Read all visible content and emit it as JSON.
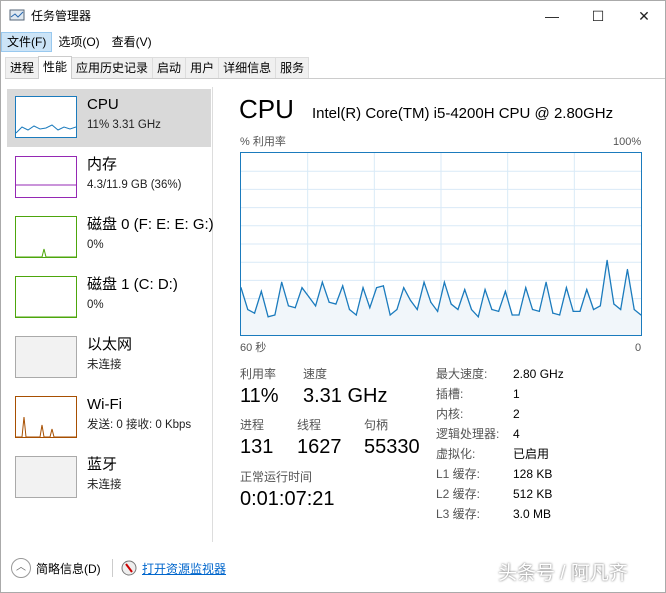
{
  "window": {
    "title": "任务管理器",
    "min": "—",
    "max": "☐",
    "close": "✕"
  },
  "menu": [
    "文件(F)",
    "选项(O)",
    "查看(V)"
  ],
  "tabs": [
    "进程",
    "性能",
    "应用历史记录",
    "启动",
    "用户",
    "详细信息",
    "服务"
  ],
  "sidebar": [
    {
      "name": "CPU",
      "sub": "11%  3.31 GHz",
      "color": "#1b7bbd"
    },
    {
      "name": "内存",
      "sub": "4.3/11.9 GB (36%)",
      "color": "#9528b4"
    },
    {
      "name": "磁盘 0 (F: E: E: G:)",
      "sub": "0%",
      "color": "#4da60c"
    },
    {
      "name": "磁盘 1 (C: D:)",
      "sub": "0%",
      "color": "#4da60c"
    },
    {
      "name": "以太网",
      "sub": "未连接",
      "color": "#aaaaaa"
    },
    {
      "name": "Wi-Fi",
      "sub": "发送: 0  接收: 0 Kbps",
      "color": "#a74f01"
    },
    {
      "name": "蓝牙",
      "sub": "未连接",
      "color": "#aaaaaa"
    }
  ],
  "main": {
    "title": "CPU",
    "model": "Intel(R) Core(TM) i5-4200H CPU @ 2.80GHz",
    "util_label": "% 利用率",
    "max_label": "100%",
    "left_time": "60 秒",
    "right_time": "0"
  },
  "chart_data": {
    "type": "area",
    "ylim": [
      0,
      100
    ],
    "xlabel": "",
    "values": [
      26,
      14,
      12,
      24,
      10,
      11,
      29,
      16,
      15,
      26,
      21,
      16,
      29,
      18,
      17,
      27,
      14,
      11,
      26,
      15,
      26,
      27,
      11,
      14,
      26,
      19,
      14,
      29,
      18,
      13,
      29,
      17,
      14,
      25,
      14,
      10,
      25,
      14,
      13,
      24,
      11,
      11,
      26,
      14,
      13,
      29,
      12,
      11,
      26,
      13,
      13,
      25,
      14,
      16,
      41,
      17,
      14,
      36,
      14,
      11
    ],
    "color": "#1b7bbd"
  },
  "stats": {
    "util_label": "利用率",
    "util": "11%",
    "speed_label": "速度",
    "speed": "3.31 GHz",
    "proc_label": "进程",
    "proc": "131",
    "thread_label": "线程",
    "thread": "1627",
    "handle_label": "句柄",
    "handle": "55330",
    "uptime_label": "正常运行时间",
    "uptime": "0:01:07:21"
  },
  "specs": [
    [
      "最大速度:",
      "2.80 GHz"
    ],
    [
      "插槽:",
      "1"
    ],
    [
      "内核:",
      "2"
    ],
    [
      "逻辑处理器:",
      "4"
    ],
    [
      "虚拟化:",
      "已启用"
    ],
    [
      "L1 缓存:",
      "128 KB"
    ],
    [
      "L2 缓存:",
      "512 KB"
    ],
    [
      "L3 缓存:",
      "3.0 MB"
    ]
  ],
  "footer": {
    "less": "简略信息(D)",
    "monitor": "打开资源监视器"
  },
  "watermark": "头条号 / 阿凡齐"
}
